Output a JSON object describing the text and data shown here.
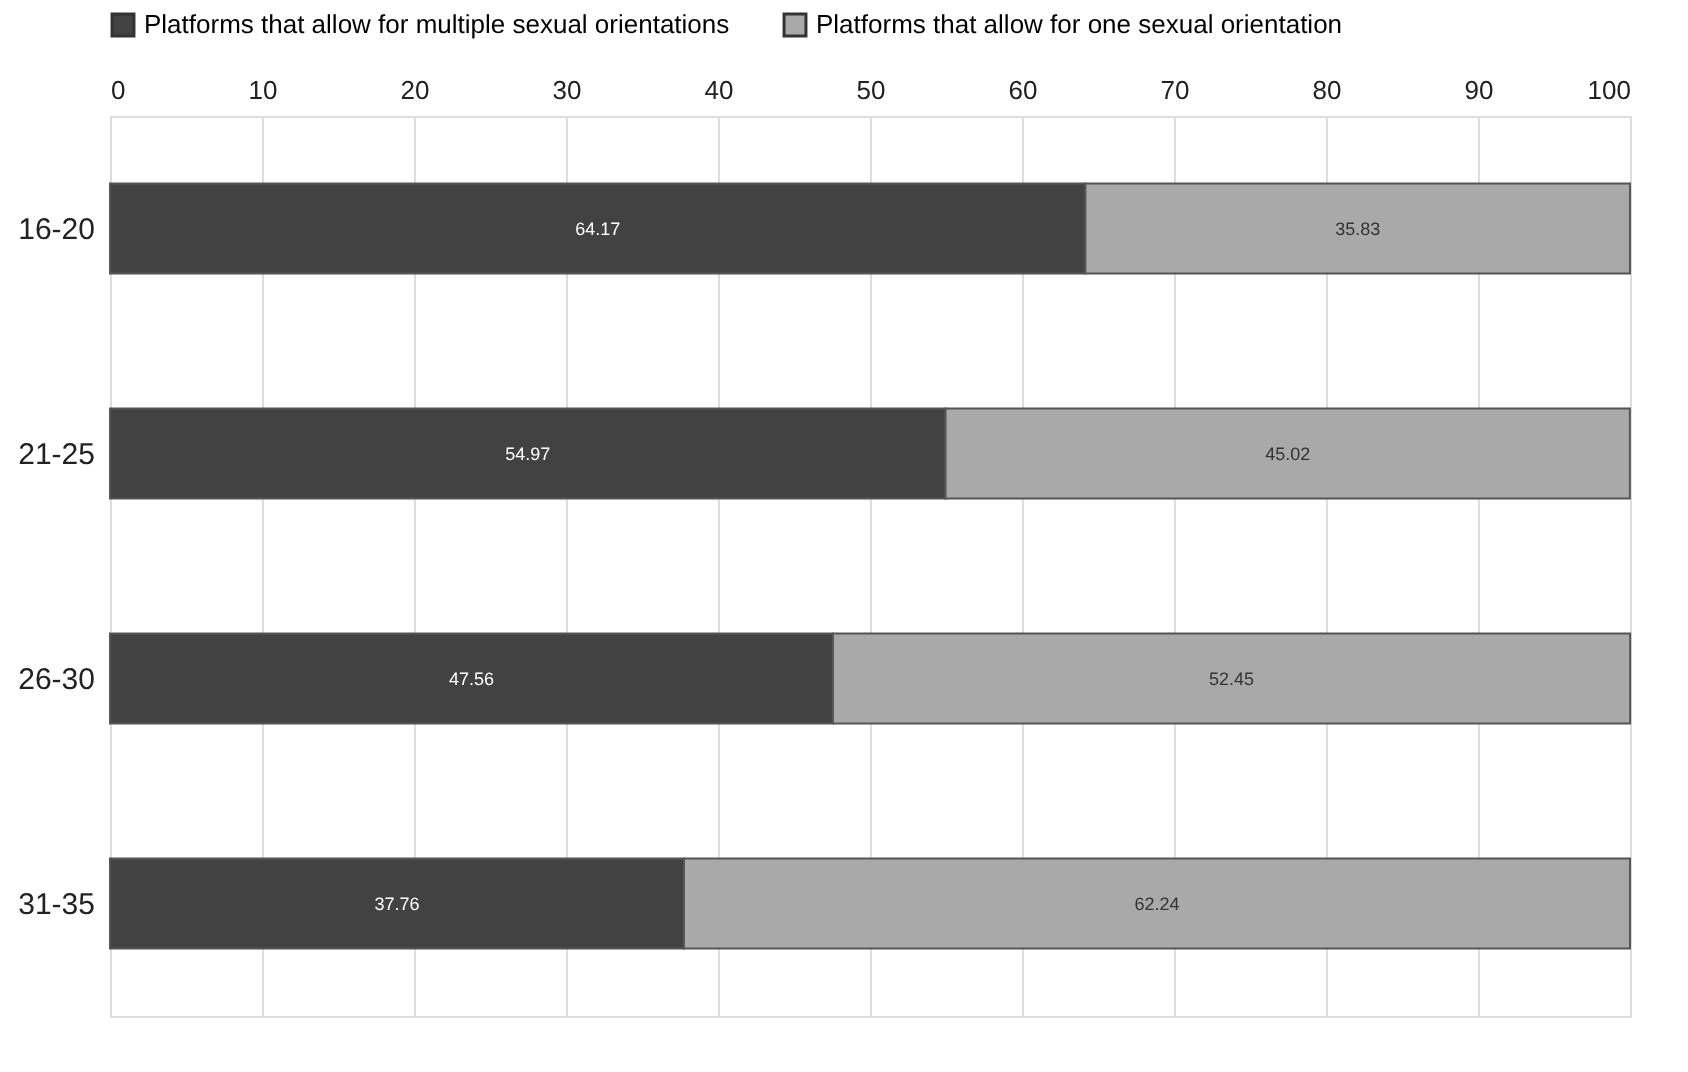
{
  "chart_data": {
    "type": "bar",
    "orientation": "horizontal",
    "stacked": true,
    "categories": [
      "16-20",
      "21-25",
      "26-30",
      "31-35"
    ],
    "series": [
      {
        "name": "Platforms that allow for multiple sexual orientations",
        "color": "#424242",
        "values": [
          64.17,
          54.97,
          47.56,
          37.76
        ]
      },
      {
        "name": "Platforms that allow for one sexual orientation",
        "color": "#a9a9a9",
        "values": [
          35.83,
          45.02,
          52.45,
          62.24
        ]
      }
    ],
    "xlim": [
      0,
      100
    ],
    "xticks": [
      0,
      10,
      20,
      30,
      40,
      50,
      60,
      70,
      80,
      90,
      100
    ],
    "grid": "x",
    "legend": "top",
    "data_labels": true
  }
}
